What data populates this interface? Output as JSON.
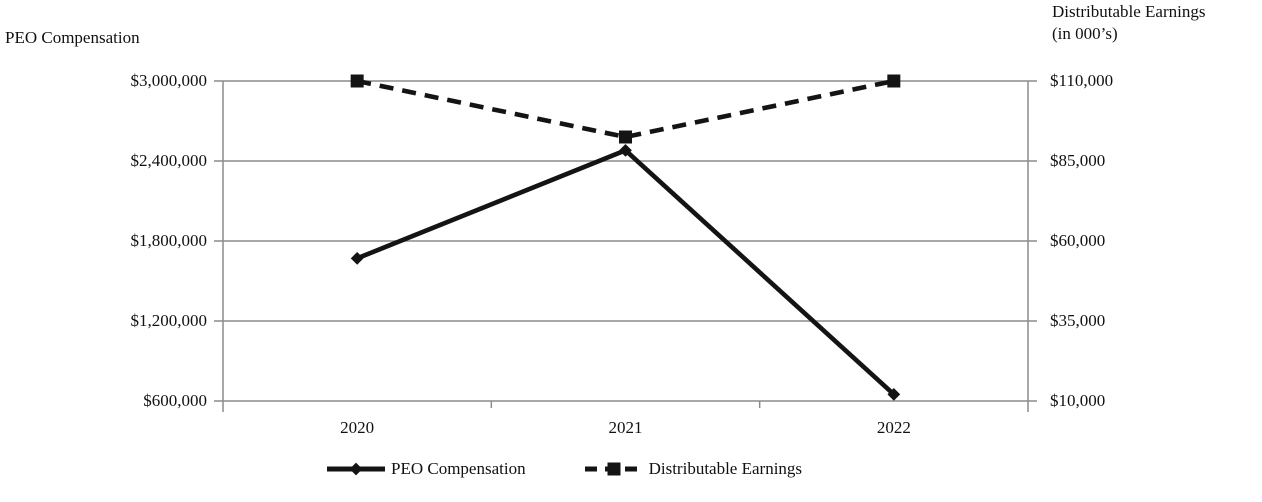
{
  "left_axis": {
    "title": "PEO Compensation",
    "tick_labels": [
      "$3,000,000",
      "$2,400,000",
      "$1,800,000",
      "$1,200,000",
      "$600,000"
    ],
    "min": 600000,
    "max": 3000000,
    "tick_step": 600000
  },
  "right_axis": {
    "title_line1": "Distributable Earnings",
    "title_line2": "(in 000’s)",
    "tick_labels": [
      "$110,000",
      "$85,000",
      "$60,000",
      "$35,000",
      "$10,000"
    ],
    "min": 10000,
    "max": 110000,
    "tick_step": 25000
  },
  "x_axis": {
    "labels": [
      "2020",
      "2021",
      "2022"
    ]
  },
  "legend": [
    {
      "label": "PEO Compensation",
      "line": "solid",
      "marker": "diamond"
    },
    {
      "label": "Distributable Earnings",
      "line": "dashed",
      "marker": "square"
    }
  ],
  "colors": {
    "series_line": "#141414",
    "grid_line": "#8c8c8c",
    "text": "#111111",
    "background": "#ffffff"
  },
  "chart_data": {
    "type": "line",
    "categories": [
      "2020",
      "2021",
      "2022"
    ],
    "series": [
      {
        "name": "PEO Compensation",
        "axis": "left",
        "style": "solid",
        "marker": "diamond",
        "values": [
          1670000,
          2480000,
          650000
        ]
      },
      {
        "name": "Distributable Earnings",
        "axis": "right",
        "style": "dashed",
        "marker": "square",
        "values": [
          110000,
          92500,
          110000
        ]
      }
    ],
    "title": "",
    "xlabel": "",
    "left_ylabel": "PEO Compensation",
    "right_ylabel": "Distributable Earnings (in 000’s)",
    "left_ylim": [
      600000,
      3000000
    ],
    "right_ylim": [
      10000,
      110000
    ],
    "grid": true,
    "legend_position": "bottom"
  }
}
